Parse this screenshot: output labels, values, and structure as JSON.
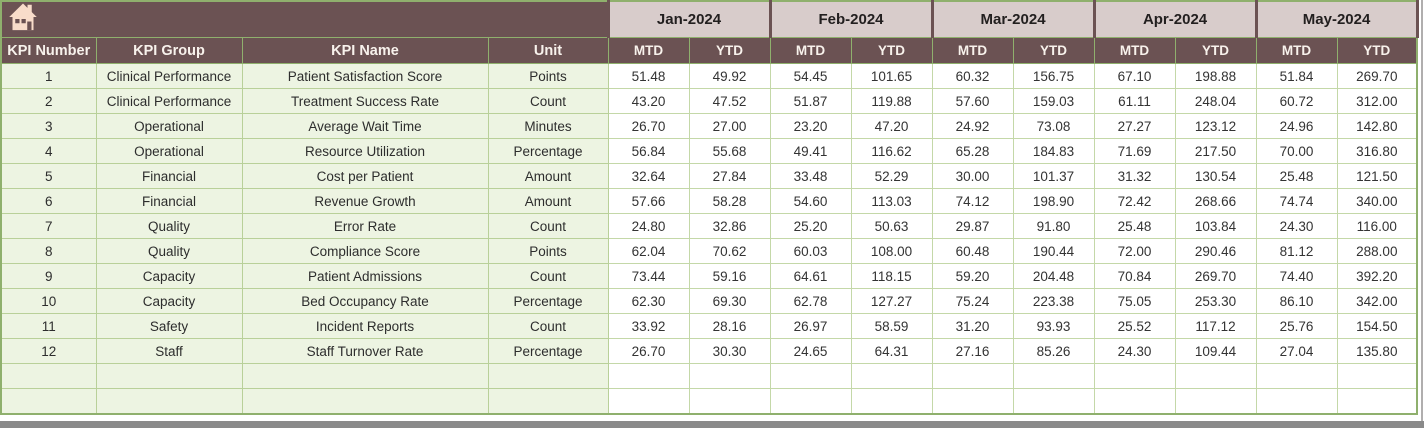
{
  "banner": {
    "home_icon": "home-icon",
    "months": [
      "Jan-2024",
      "Feb-2024",
      "Mar-2024",
      "Apr-2024",
      "May-2024"
    ]
  },
  "columns": {
    "fixed": [
      "KPI Number",
      "KPI Group",
      "KPI Name",
      "Unit"
    ],
    "sub": [
      "MTD",
      "YTD"
    ]
  },
  "rows": [
    {
      "number": "1",
      "group": "Clinical Performance",
      "name": "Patient Satisfaction Score",
      "unit": "Points",
      "values": [
        "51.48",
        "49.92",
        "54.45",
        "101.65",
        "60.32",
        "156.75",
        "67.10",
        "198.88",
        "51.84",
        "269.70"
      ]
    },
    {
      "number": "2",
      "group": "Clinical Performance",
      "name": "Treatment Success Rate",
      "unit": "Count",
      "values": [
        "43.20",
        "47.52",
        "51.87",
        "119.88",
        "57.60",
        "159.03",
        "61.11",
        "248.04",
        "60.72",
        "312.00"
      ]
    },
    {
      "number": "3",
      "group": "Operational",
      "name": "Average Wait Time",
      "unit": "Minutes",
      "values": [
        "26.70",
        "27.00",
        "23.20",
        "47.20",
        "24.92",
        "73.08",
        "27.27",
        "123.12",
        "24.96",
        "142.80"
      ]
    },
    {
      "number": "4",
      "group": "Operational",
      "name": "Resource Utilization",
      "unit": "Percentage",
      "values": [
        "56.84",
        "55.68",
        "49.41",
        "116.62",
        "65.28",
        "184.83",
        "71.69",
        "217.50",
        "70.00",
        "316.80"
      ]
    },
    {
      "number": "5",
      "group": "Financial",
      "name": "Cost per Patient",
      "unit": "Amount",
      "values": [
        "32.64",
        "27.84",
        "33.48",
        "52.29",
        "30.00",
        "101.37",
        "31.32",
        "130.54",
        "25.48",
        "121.50"
      ]
    },
    {
      "number": "6",
      "group": "Financial",
      "name": "Revenue Growth",
      "unit": "Amount",
      "values": [
        "57.66",
        "58.28",
        "54.60",
        "113.03",
        "74.12",
        "198.90",
        "72.42",
        "268.66",
        "74.74",
        "340.00"
      ]
    },
    {
      "number": "7",
      "group": "Quality",
      "name": "Error Rate",
      "unit": "Count",
      "values": [
        "24.80",
        "32.86",
        "25.20",
        "50.63",
        "29.87",
        "91.80",
        "25.48",
        "103.84",
        "24.30",
        "116.00"
      ]
    },
    {
      "number": "8",
      "group": "Quality",
      "name": "Compliance Score",
      "unit": "Points",
      "values": [
        "62.04",
        "70.62",
        "60.03",
        "108.00",
        "60.48",
        "190.44",
        "72.00",
        "290.46",
        "81.12",
        "288.00"
      ]
    },
    {
      "number": "9",
      "group": "Capacity",
      "name": "Patient Admissions",
      "unit": "Count",
      "values": [
        "73.44",
        "59.16",
        "64.61",
        "118.15",
        "59.20",
        "204.48",
        "70.84",
        "269.70",
        "74.40",
        "392.20"
      ]
    },
    {
      "number": "10",
      "group": "Capacity",
      "name": "Bed Occupancy Rate",
      "unit": "Percentage",
      "values": [
        "62.30",
        "69.30",
        "62.78",
        "127.27",
        "75.24",
        "223.38",
        "75.05",
        "253.30",
        "86.10",
        "342.00"
      ]
    },
    {
      "number": "11",
      "group": "Safety",
      "name": "Incident Reports",
      "unit": "Count",
      "values": [
        "33.92",
        "28.16",
        "26.97",
        "58.59",
        "31.20",
        "93.93",
        "25.52",
        "117.12",
        "25.76",
        "154.50"
      ]
    },
    {
      "number": "12",
      "group": "Staff",
      "name": "Staff Turnover Rate",
      "unit": "Percentage",
      "values": [
        "26.70",
        "30.30",
        "24.65",
        "64.31",
        "27.16",
        "85.26",
        "24.30",
        "109.44",
        "27.04",
        "135.80"
      ]
    }
  ],
  "empty_row_count": 2,
  "colors": {
    "header_brown": "#6b5253",
    "month_pink": "#d8cccb",
    "fixed_cell_green": "#edf4e2",
    "grid_green": "#8fb06d",
    "icon_cream": "#f8dcca",
    "bottom_bar_gray": "#8a8a8a"
  }
}
